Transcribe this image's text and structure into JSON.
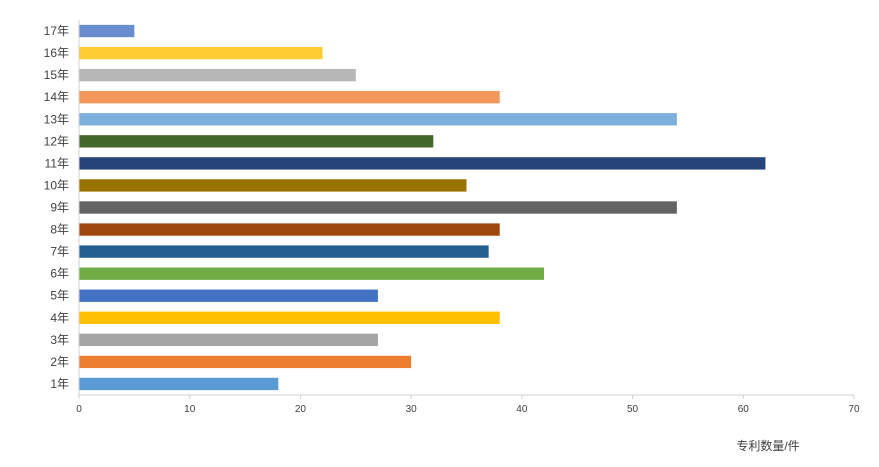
{
  "chart_data": {
    "type": "bar",
    "orientation": "horizontal",
    "categories": [
      "1年",
      "2年",
      "3年",
      "4年",
      "5年",
      "6年",
      "7年",
      "8年",
      "9年",
      "10年",
      "11年",
      "12年",
      "13年",
      "14年",
      "15年",
      "16年",
      "17年"
    ],
    "values": [
      18,
      30,
      27,
      38,
      27,
      42,
      37,
      38,
      54,
      35,
      62,
      32,
      54,
      38,
      25,
      22,
      5
    ],
    "colors": [
      "#5b9bd5",
      "#ed7d31",
      "#a5a5a5",
      "#ffc000",
      "#4472c4",
      "#70ad47",
      "#255e91",
      "#9e480e",
      "#636363",
      "#997300",
      "#264478",
      "#43682b",
      "#7cafdd",
      "#f1975a",
      "#b7b7b7",
      "#ffcd33",
      "#698ed0"
    ],
    "title": "",
    "xlabel": "专利数量/件",
    "ylabel": "",
    "xlim": [
      0,
      70
    ],
    "x_ticks": [
      0,
      10,
      20,
      30,
      40,
      50,
      60,
      70
    ],
    "grid": false,
    "legend": "none"
  }
}
